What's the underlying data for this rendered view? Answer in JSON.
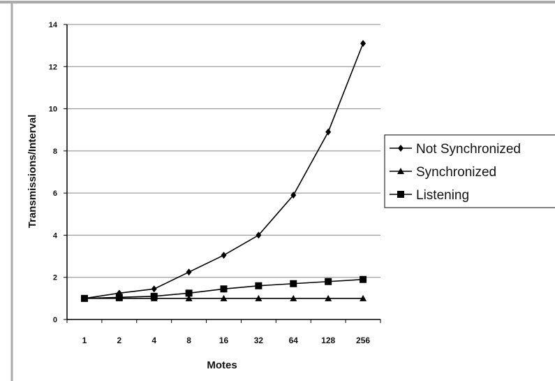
{
  "chart_data": {
    "type": "line",
    "title": "",
    "xlabel": "Motes",
    "ylabel": "Transmissions/Interval",
    "categories": [
      "1",
      "2",
      "4",
      "8",
      "16",
      "32",
      "64",
      "128",
      "256"
    ],
    "ylim": [
      0,
      14
    ],
    "yticks": [
      "0",
      "2",
      "4",
      "6",
      "8",
      "10",
      "12",
      "14"
    ],
    "grid": "horizontal",
    "legend_position": "right",
    "series": [
      {
        "name": "Not Synchronized",
        "marker": "diamond",
        "values": [
          1.0,
          1.25,
          1.45,
          2.25,
          3.05,
          4.0,
          5.9,
          8.9,
          13.1
        ]
      },
      {
        "name": "Synchronized",
        "marker": "triangle",
        "values": [
          1.0,
          1.0,
          1.0,
          1.0,
          1.0,
          1.0,
          1.0,
          1.0,
          1.0
        ]
      },
      {
        "name": "Listening",
        "marker": "square",
        "values": [
          1.0,
          1.05,
          1.1,
          1.25,
          1.45,
          1.6,
          1.7,
          1.8,
          1.9
        ]
      }
    ],
    "colors": {
      "line": "#000000",
      "grid": "#888888",
      "frame": "#aaaaaa"
    }
  }
}
